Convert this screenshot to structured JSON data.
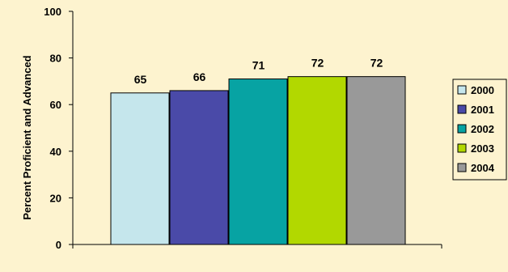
{
  "chart_data": {
    "type": "bar",
    "ylabel": "Percent Proficient and Advanced",
    "ylim": [
      0,
      100
    ],
    "yticks": [
      0,
      20,
      40,
      60,
      80,
      100
    ],
    "grid": false,
    "legend_position": "right",
    "series": [
      {
        "name": "2000",
        "values": [
          65
        ],
        "color": "#c5e6ec"
      },
      {
        "name": "2001",
        "values": [
          66
        ],
        "color": "#4a4aa8"
      },
      {
        "name": "2002",
        "values": [
          71
        ],
        "color": "#07a3a3"
      },
      {
        "name": "2003",
        "values": [
          72
        ],
        "color": "#b2d800"
      },
      {
        "name": "2004",
        "values": [
          72
        ],
        "color": "#999999"
      }
    ]
  }
}
